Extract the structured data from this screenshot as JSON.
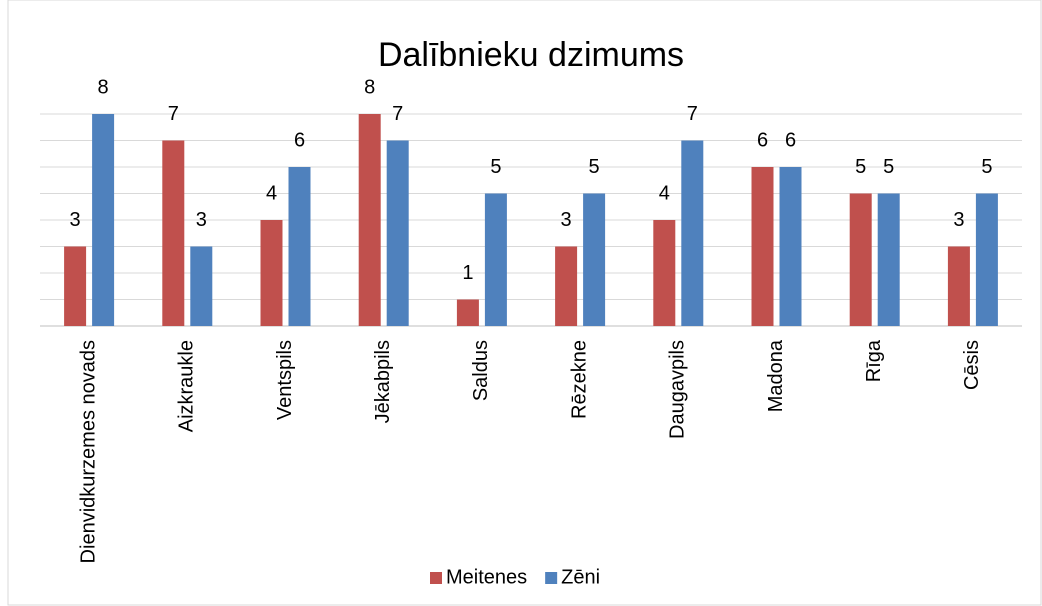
{
  "chart_data": {
    "type": "bar",
    "title": "Dalībnieku dzimums",
    "categories": [
      "Dienvidkurzemes novads",
      "Aizkraukle",
      "Ventspils",
      "Jēkabpils",
      "Saldus",
      "Rēzekne",
      "Daugavpils",
      "Madona",
      "Rīga",
      "Cēsis"
    ],
    "series": [
      {
        "name": "Meitenes",
        "color": "#c0504d",
        "values": [
          3,
          7,
          4,
          8,
          1,
          3,
          4,
          6,
          5,
          3
        ]
      },
      {
        "name": "Zēni",
        "color": "#4f81bd",
        "values": [
          8,
          3,
          6,
          7,
          5,
          5,
          7,
          6,
          5,
          5
        ]
      }
    ],
    "ylim": [
      0,
      8
    ],
    "yticks": [
      0,
      1,
      2,
      3,
      4,
      5,
      6,
      7,
      8
    ],
    "grid": true,
    "legend": "bottom"
  }
}
